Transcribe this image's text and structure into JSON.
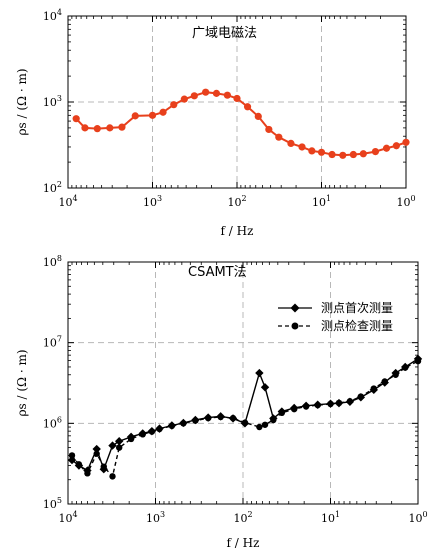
{
  "chart_data": [
    {
      "type": "line",
      "title": "广域电磁法",
      "xlabel": "f / Hz",
      "ylabel": "ρs / (Ω · m)",
      "x_scale": "log",
      "x_reversed": true,
      "y_scale": "log",
      "xlim": [
        10000,
        1
      ],
      "ylim": [
        100,
        10000
      ],
      "x_ticks": [
        10000,
        1000,
        100,
        10,
        1
      ],
      "y_ticks": [
        100,
        1000,
        10000
      ],
      "grid": "dashed",
      "color": "#e8401c",
      "series": [
        {
          "x": [
            8000,
            6300,
            4500,
            3200,
            2300,
            1600,
            1000,
            750,
            560,
            420,
            320,
            235,
            175,
            130,
            100,
            75,
            56,
            42,
            32,
            23,
            17,
            13,
            10,
            7.5,
            5.6,
            4.2,
            3.2,
            2.3,
            1.7,
            1.3,
            1
          ],
          "y": [
            640,
            500,
            490,
            500,
            510,
            690,
            700,
            760,
            930,
            1080,
            1180,
            1300,
            1260,
            1200,
            1100,
            880,
            680,
            480,
            390,
            330,
            300,
            270,
            260,
            245,
            240,
            245,
            250,
            265,
            290,
            310,
            340
          ]
        }
      ]
    },
    {
      "type": "line",
      "title": "CSAMT法",
      "xlabel": "f / Hz",
      "ylabel": "ρs / (Ω · m)",
      "x_scale": "log",
      "x_reversed": true,
      "y_scale": "log",
      "xlim": [
        10000,
        1
      ],
      "ylim": [
        100000,
        100000000
      ],
      "x_ticks": [
        10000,
        1000,
        100,
        10,
        1
      ],
      "y_ticks": [
        100000,
        1000000,
        10000000,
        100000000
      ],
      "grid": "dashed",
      "legend_position": "top-right",
      "series": [
        {
          "name": "测点首次测量",
          "marker": "diamond",
          "line": "solid",
          "x": [
            9000,
            7500,
            6000,
            4700,
            3900,
            3100,
            2600,
            1900,
            1400,
            1100,
            900,
            650,
            480,
            350,
            250,
            180,
            130,
            95,
            65,
            56,
            45,
            36,
            26,
            19,
            14,
            10,
            8,
            6,
            4.5,
            3.2,
            2.4,
            1.8,
            1.4,
            1
          ],
          "y": [
            350000,
            300000,
            260000,
            480000,
            270000,
            530000,
            600000,
            680000,
            750000,
            800000,
            860000,
            940000,
            1010000,
            1100000,
            1180000,
            1220000,
            1150000,
            1000000,
            4200000,
            2800000,
            1150000,
            1400000,
            1550000,
            1650000,
            1700000,
            1750000,
            1780000,
            1850000,
            2100000,
            2600000,
            3200000,
            4200000,
            5000000,
            6300000
          ]
        },
        {
          "name": "测点检查测量",
          "marker": "circle",
          "line": "dashed",
          "x": [
            9000,
            7500,
            6000,
            4700,
            3900,
            3100,
            2600,
            1900,
            1400,
            1100,
            900,
            650,
            480,
            350,
            250,
            180,
            130,
            95,
            65,
            56,
            45,
            36,
            26,
            19,
            14,
            10,
            8,
            6,
            4.5,
            3.2,
            2.4,
            1.8,
            1.4,
            1
          ],
          "y": [
            400000,
            310000,
            240000,
            420000,
            290000,
            220000,
            500000,
            640000,
            730000,
            790000,
            850000,
            930000,
            1000000,
            1080000,
            1160000,
            1200000,
            1160000,
            1020000,
            900000,
            960000,
            1100000,
            1350000,
            1500000,
            1620000,
            1680000,
            1740000,
            1790000,
            1880000,
            2150000,
            2700000,
            3300000,
            4000000,
            4900000,
            5900000
          ]
        }
      ]
    }
  ]
}
